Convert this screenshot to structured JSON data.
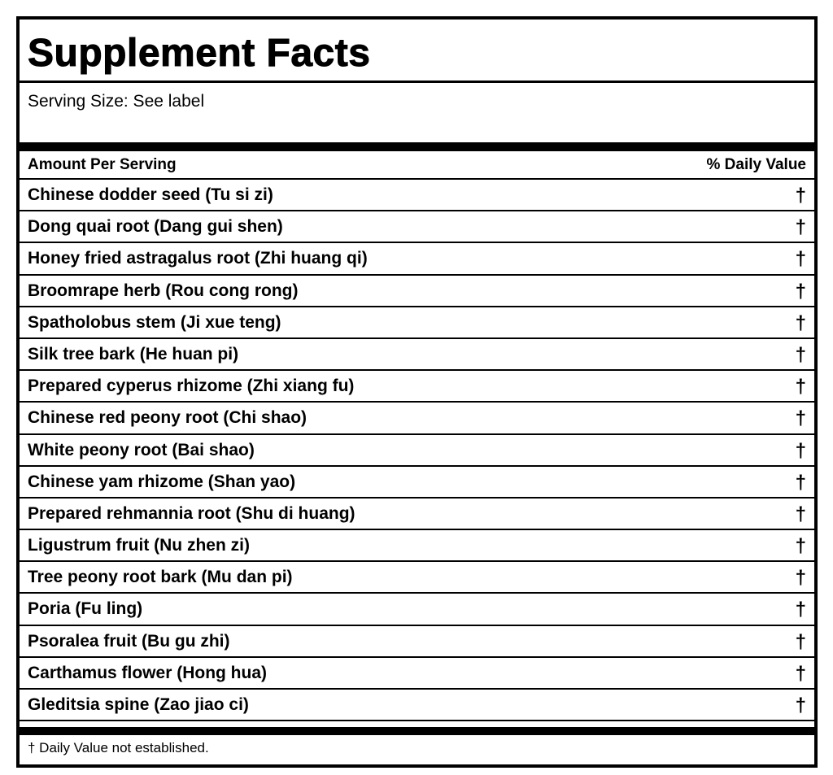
{
  "title": "Supplement Facts",
  "serving": "Serving Size: See label",
  "header": {
    "amount": "Amount Per Serving",
    "dv": "% Daily Value"
  },
  "rows": [
    {
      "name": "Chinese dodder seed (Tu si zi)",
      "dv": "†"
    },
    {
      "name": "Dong quai root (Dang gui shen)",
      "dv": "†"
    },
    {
      "name": "Honey fried astragalus root (Zhi huang qi)",
      "dv": "†"
    },
    {
      "name": "Broomrape herb (Rou cong rong)",
      "dv": "†"
    },
    {
      "name": "Spatholobus stem (Ji xue teng)",
      "dv": "†"
    },
    {
      "name": "Silk tree bark (He huan pi)",
      "dv": "†"
    },
    {
      "name": "Prepared cyperus rhizome (Zhi xiang fu)",
      "dv": "†"
    },
    {
      "name": "Chinese red peony root (Chi shao)",
      "dv": "†"
    },
    {
      "name": "White peony root (Bai shao)",
      "dv": "†"
    },
    {
      "name": "Chinese yam rhizome (Shan yao)",
      "dv": "†"
    },
    {
      "name": "Prepared rehmannia root (Shu di huang)",
      "dv": "†"
    },
    {
      "name": "Ligustrum fruit (Nu zhen zi)",
      "dv": "†"
    },
    {
      "name": "Tree peony root bark (Mu dan pi)",
      "dv": "†"
    },
    {
      "name": "Poria (Fu ling)",
      "dv": "†"
    },
    {
      "name": "Psoralea fruit (Bu gu zhi)",
      "dv": "†"
    },
    {
      "name": "Carthamus flower (Hong hua)",
      "dv": "†"
    },
    {
      "name": "Gleditsia spine (Zao jiao ci)",
      "dv": "†"
    }
  ],
  "footnote": "† Daily Value not established."
}
